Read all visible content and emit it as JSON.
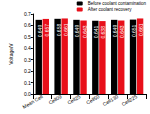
{
  "chart_data": {
    "type": "bar",
    "y_label": "Voltage/V",
    "categories": [
      "Mean Cell",
      "Cell09",
      "Cell25",
      "Cell50",
      "Cell130",
      "Cell225"
    ],
    "series": [
      {
        "name": "Before coolant contamination",
        "color": "#000000",
        "values": [
          0.649,
          0.658,
          0.649,
          0.641,
          0.649,
          0.651
        ]
      },
      {
        "name": "After coolant recovery",
        "color": "#e8101a",
        "values": [
          0.657,
          0.661,
          0.643,
          0.638,
          0.643,
          0.661
        ]
      }
    ],
    "ylim": [
      0,
      0.7
    ],
    "yticks": [
      {
        "value": 0,
        "label": "0.0"
      },
      0.1,
      0.2,
      0.3,
      0.4,
      0.5,
      0.6,
      0.7
    ],
    "grid": false,
    "legend": "top-right",
    "data_labels": true
  }
}
